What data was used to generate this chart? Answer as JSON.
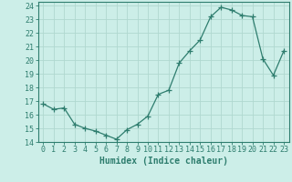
{
  "x": [
    0,
    1,
    2,
    3,
    4,
    5,
    6,
    7,
    8,
    9,
    10,
    11,
    12,
    13,
    14,
    15,
    16,
    17,
    18,
    19,
    20,
    21,
    22,
    23
  ],
  "y": [
    16.8,
    16.4,
    16.5,
    15.3,
    15.0,
    14.8,
    14.5,
    14.2,
    14.9,
    15.3,
    15.9,
    17.5,
    17.8,
    19.8,
    20.7,
    21.5,
    23.2,
    23.9,
    23.7,
    23.3,
    23.2,
    20.1,
    18.9,
    20.7
  ],
  "line_color": "#2e7d6e",
  "marker": "D",
  "marker_size": 2.2,
  "bg_color": "#cceee8",
  "grid_color": "#b0d8d0",
  "xlabel": "Humidex (Indice chaleur)",
  "ylabel_ticks": [
    14,
    15,
    16,
    17,
    18,
    19,
    20,
    21,
    22,
    23,
    24
  ],
  "xlim": [
    -0.5,
    23.5
  ],
  "ylim": [
    14,
    24.3
  ],
  "tick_color": "#2e7d6e",
  "label_fontsize": 7.0,
  "tick_fontsize": 6.0
}
